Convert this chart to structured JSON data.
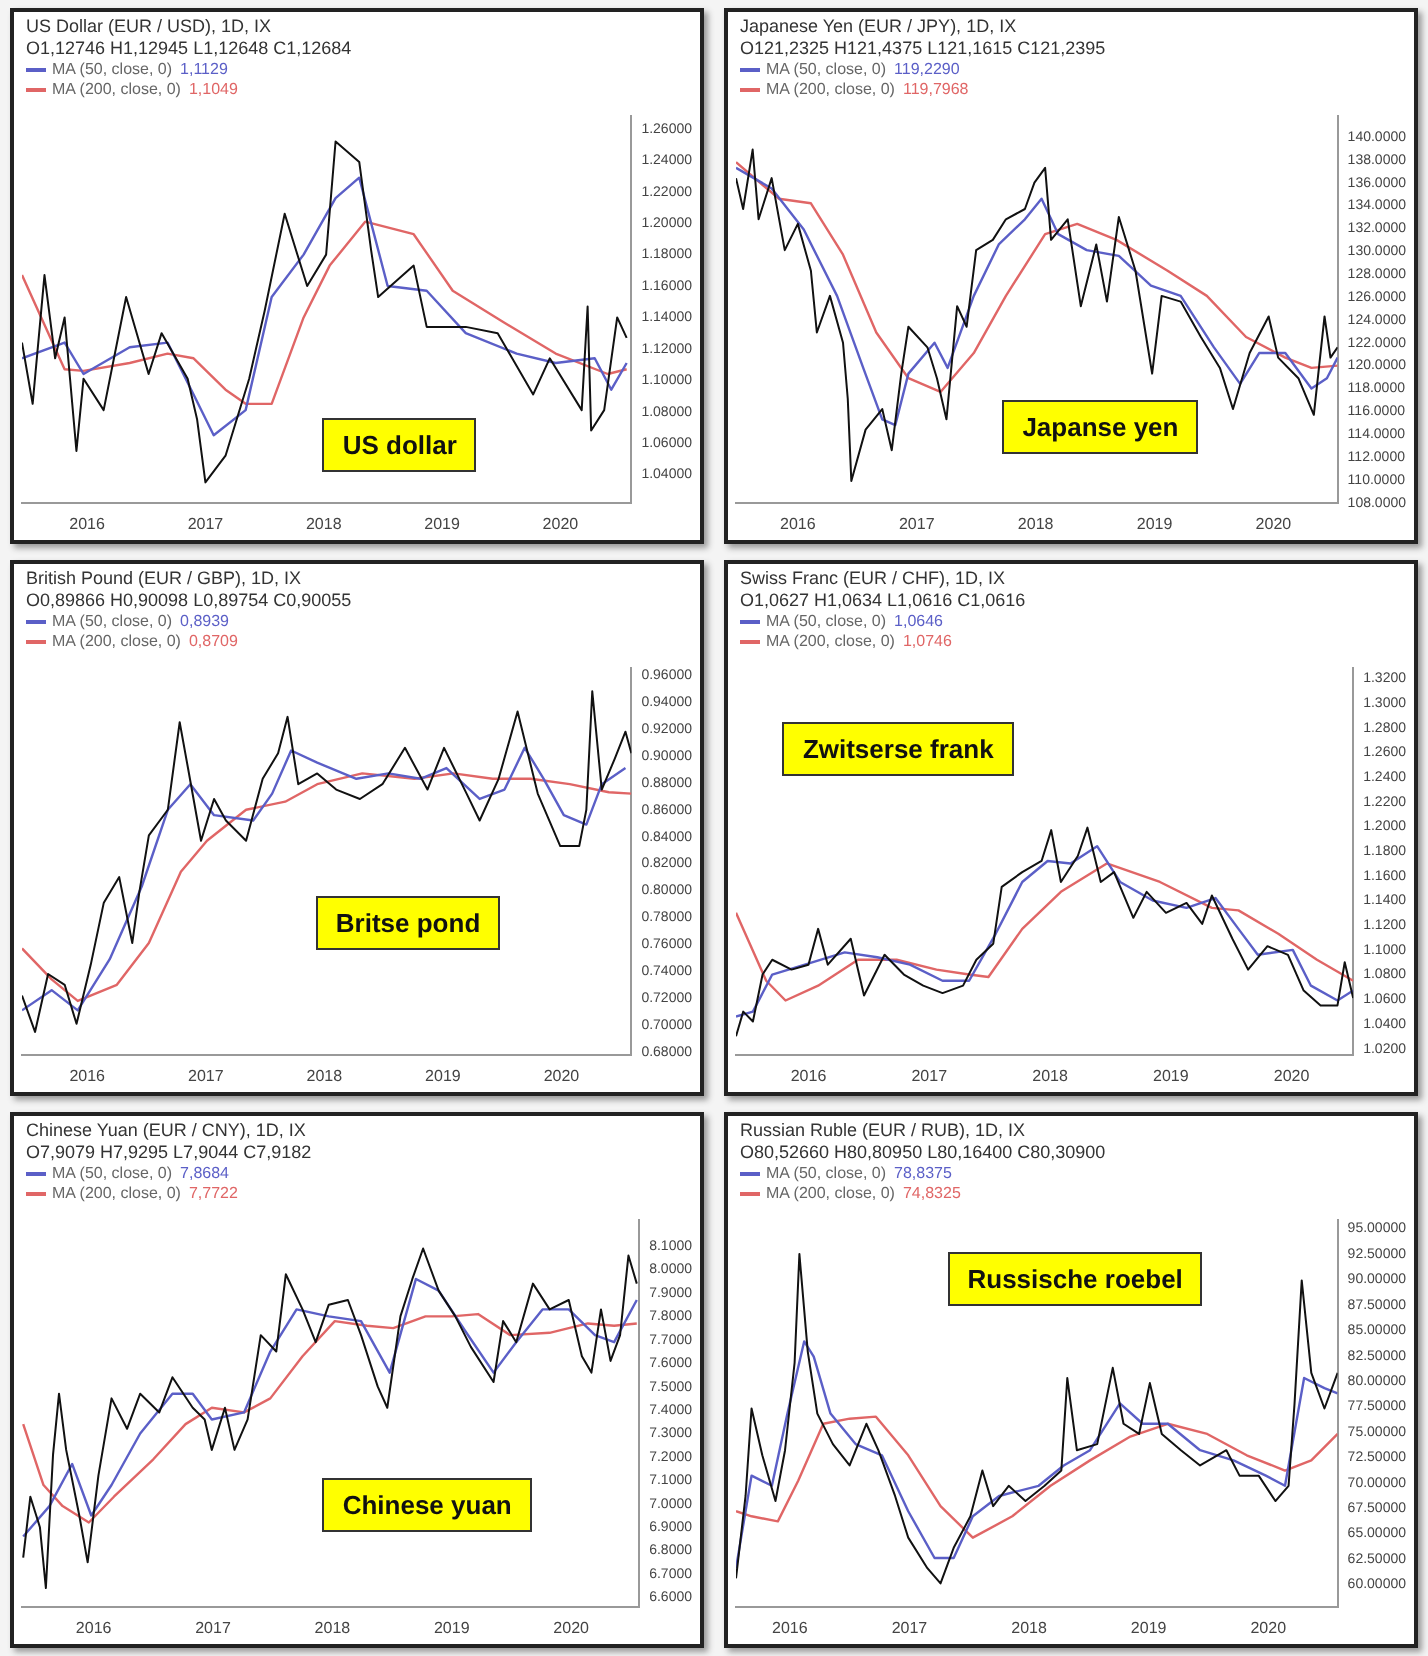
{
  "chart_data": [
    {
      "type": "line",
      "title": "US Dollar (EUR / USD), 1D, IX",
      "subtitle": "O1,12746 H1,12945 L1,12648 C1,12684",
      "legend": "top left",
      "annotations": [
        "US dollar",
        "1,1129",
        "1,1049"
      ],
      "xlim": [
        2015.45,
        2020.6
      ],
      "xticks": [
        2016,
        2017,
        2018,
        2019,
        2020
      ],
      "ylim": [
        1.022,
        1.268
      ],
      "yticks": [
        {
          "value": 1.04,
          "label": "1.04000"
        },
        {
          "value": 1.06,
          "label": "1.06000"
        },
        {
          "value": 1.08,
          "label": "1.08000"
        },
        {
          "value": 1.1,
          "label": "1.10000"
        },
        {
          "value": 1.12,
          "label": "1.12000"
        },
        {
          "value": 1.14,
          "label": "1.14000"
        },
        {
          "value": 1.16,
          "label": "1.16000"
        },
        {
          "value": 1.18,
          "label": "1.18000"
        },
        {
          "value": 1.2,
          "label": "1.20000"
        },
        {
          "value": 1.22,
          "label": "1.22000"
        },
        {
          "value": 1.24,
          "label": "1.24000"
        },
        {
          "value": 1.26,
          "label": "1.26000"
        }
      ],
      "series": [
        {
          "color": "#111111",
          "x": [
            2015.45,
            2015.54,
            2015.64,
            2015.73,
            2015.81,
            2015.91,
            2015.97,
            2016.14,
            2016.33,
            2016.52,
            2016.63,
            2016.85,
            2016.93,
            2017.0,
            2017.17,
            2017.37,
            2017.5,
            2017.67,
            2017.86,
            2018.02,
            2018.1,
            2018.3,
            2018.4,
            2018.46,
            2018.76,
            2018.87,
            2019.2,
            2019.47,
            2019.77,
            2019.91,
            2020.18,
            2020.23,
            2020.26,
            2020.37,
            2020.48,
            2020.56
          ],
          "values": [
            1.124,
            1.085,
            1.167,
            1.114,
            1.14,
            1.055,
            1.101,
            1.081,
            1.153,
            1.104,
            1.13,
            1.101,
            1.075,
            1.035,
            1.052,
            1.101,
            1.144,
            1.206,
            1.16,
            1.18,
            1.252,
            1.239,
            1.183,
            1.153,
            1.173,
            1.134,
            1.134,
            1.13,
            1.091,
            1.114,
            1.081,
            1.147,
            1.068,
            1.081,
            1.14,
            1.127
          ]
        },
        {
          "name": "MA (50, close, 0)",
          "color": "#5b5fc7",
          "x": [
            2015.45,
            2015.81,
            2015.97,
            2016.36,
            2016.68,
            2016.9,
            2017.07,
            2017.34,
            2017.56,
            2017.83,
            2018.1,
            2018.3,
            2018.54,
            2018.87,
            2019.2,
            2019.63,
            2019.96,
            2020.29,
            2020.43,
            2020.56
          ],
          "values": [
            1.114,
            1.124,
            1.104,
            1.121,
            1.124,
            1.091,
            1.065,
            1.081,
            1.153,
            1.18,
            1.216,
            1.229,
            1.16,
            1.157,
            1.13,
            1.117,
            1.111,
            1.114,
            1.094,
            1.111
          ]
        },
        {
          "name": "MA (200, close, 0)",
          "color": "#e06666",
          "x": [
            2015.45,
            2015.81,
            2015.97,
            2016.36,
            2016.68,
            2016.9,
            2017.17,
            2017.34,
            2017.56,
            2017.83,
            2018.05,
            2018.35,
            2018.76,
            2019.09,
            2019.52,
            2019.96,
            2020.4,
            2020.56
          ],
          "values": [
            1.167,
            1.107,
            1.106,
            1.111,
            1.117,
            1.114,
            1.094,
            1.085,
            1.085,
            1.14,
            1.173,
            1.201,
            1.193,
            1.157,
            1.137,
            1.117,
            1.104,
            1.107
          ]
        }
      ]
    },
    {
      "type": "line",
      "title": "Japanese Yen (EUR / JPY), 1D, IX",
      "subtitle": "O121,2325 H121,4375 L121,1615 C121,2395",
      "legend": "top left",
      "annotations": [
        "Japanse yen",
        "119,2290",
        "119,7968"
      ],
      "xlim": [
        2015.48,
        2020.54
      ],
      "xticks": [
        2016,
        2017,
        2018,
        2019,
        2020
      ],
      "ylim": [
        108,
        141.8
      ],
      "yticks": [
        {
          "value": 108,
          "label": "108.0000"
        },
        {
          "value": 110,
          "label": "110.0000"
        },
        {
          "value": 112,
          "label": "112.0000"
        },
        {
          "value": 114,
          "label": "114.0000"
        },
        {
          "value": 116,
          "label": "116.0000"
        },
        {
          "value": 118,
          "label": "118.0000"
        },
        {
          "value": 120,
          "label": "120.0000"
        },
        {
          "value": 122,
          "label": "122.0000"
        },
        {
          "value": 124,
          "label": "124.0000"
        },
        {
          "value": 126,
          "label": "126.0000"
        },
        {
          "value": 128,
          "label": "128.0000"
        },
        {
          "value": 130,
          "label": "130.0000"
        },
        {
          "value": 132,
          "label": "132.0000"
        },
        {
          "value": 134,
          "label": "134.0000"
        },
        {
          "value": 136,
          "label": "136.0000"
        },
        {
          "value": 138,
          "label": "138.0000"
        },
        {
          "value": 140,
          "label": "140.0000"
        }
      ],
      "series": [
        {
          "color": "#111111",
          "x": [
            2015.48,
            2015.54,
            2015.62,
            2015.67,
            2015.78,
            2015.89,
            2016.0,
            2016.11,
            2016.16,
            2016.27,
            2016.38,
            2016.42,
            2016.45,
            2016.57,
            2016.71,
            2016.79,
            2016.87,
            2016.93,
            2017.09,
            2017.17,
            2017.25,
            2017.34,
            2017.42,
            2017.5,
            2017.64,
            2017.75,
            2017.91,
            2017.99,
            2018.08,
            2018.13,
            2018.27,
            2018.38,
            2018.51,
            2018.6,
            2018.7,
            2018.84,
            2018.98,
            2019.06,
            2019.22,
            2019.39,
            2019.55,
            2019.66,
            2019.8,
            2019.96,
            2020.04,
            2020.21,
            2020.34,
            2020.43,
            2020.48,
            2020.54
          ],
          "values": [
            136.4,
            133.7,
            138.9,
            132.8,
            136.4,
            130.1,
            132.4,
            128.3,
            122.9,
            126.1,
            122.0,
            117.1,
            109.9,
            114.4,
            116.2,
            112.6,
            119.3,
            123.4,
            121.6,
            118.9,
            115.3,
            125.2,
            123.4,
            130.1,
            131.0,
            132.8,
            133.7,
            136.0,
            137.3,
            131.0,
            132.8,
            125.2,
            130.6,
            125.6,
            133.0,
            128.3,
            119.3,
            126.1,
            125.6,
            122.5,
            119.8,
            116.2,
            121.1,
            124.3,
            120.7,
            118.9,
            115.7,
            124.3,
            120.7,
            121.6
          ]
        },
        {
          "name": "MA (50, close, 0)",
          "color": "#5b5fc7",
          "x": [
            2015.48,
            2015.78,
            2016.05,
            2016.33,
            2016.55,
            2016.71,
            2016.82,
            2016.93,
            2017.15,
            2017.26,
            2017.48,
            2017.69,
            2017.91,
            2018.05,
            2018.19,
            2018.43,
            2018.7,
            2018.97,
            2019.22,
            2019.5,
            2019.72,
            2019.88,
            2020.1,
            2020.32,
            2020.45,
            2020.54
          ],
          "values": [
            137.3,
            135.5,
            131.9,
            126.1,
            119.8,
            115.3,
            114.8,
            119.3,
            122.0,
            119.8,
            126.1,
            130.6,
            132.8,
            134.6,
            131.5,
            130.1,
            129.6,
            127.0,
            126.1,
            121.6,
            118.4,
            121.1,
            121.1,
            118.0,
            118.9,
            120.7
          ]
        },
        {
          "name": "MA (200, close, 0)",
          "color": "#e06666",
          "x": [
            2015.48,
            2015.84,
            2016.11,
            2016.38,
            2016.66,
            2016.93,
            2017.2,
            2017.48,
            2017.75,
            2018.08,
            2018.35,
            2018.68,
            2019.11,
            2019.44,
            2019.77,
            2020.1,
            2020.32,
            2020.54
          ],
          "values": [
            137.8,
            134.6,
            134.2,
            129.7,
            122.9,
            118.9,
            117.7,
            121.1,
            126.1,
            131.5,
            132.4,
            131.0,
            128.3,
            126.1,
            122.5,
            120.7,
            119.8,
            120.0
          ]
        }
      ]
    },
    {
      "type": "line",
      "title": "British Pound (EUR / GBP), 1D, IX",
      "subtitle": "O0,89866 H0,90098 L0,89754 C0,90055",
      "legend": "top left",
      "annotations": [
        "Britse pond",
        "0,8939",
        "0,8709"
      ],
      "xlim": [
        2015.45,
        2020.59
      ],
      "xticks": [
        2016,
        2017,
        2018,
        2019,
        2020
      ],
      "ylim": [
        0.678,
        0.965
      ],
      "yticks": [
        {
          "value": 0.68,
          "label": "0.68000"
        },
        {
          "value": 0.7,
          "label": "0.70000"
        },
        {
          "value": 0.72,
          "label": "0.72000"
        },
        {
          "value": 0.74,
          "label": "0.74000"
        },
        {
          "value": 0.76,
          "label": "0.76000"
        },
        {
          "value": 0.78,
          "label": "0.78000"
        },
        {
          "value": 0.8,
          "label": "0.80000"
        },
        {
          "value": 0.82,
          "label": "0.82000"
        },
        {
          "value": 0.84,
          "label": "0.84000"
        },
        {
          "value": 0.86,
          "label": "0.86000"
        },
        {
          "value": 0.88,
          "label": "0.88000"
        },
        {
          "value": 0.9,
          "label": "0.90000"
        },
        {
          "value": 0.92,
          "label": "0.92000"
        },
        {
          "value": 0.94,
          "label": "0.94000"
        },
        {
          "value": 0.96,
          "label": "0.96000"
        }
      ],
      "series": [
        {
          "color": "#111111",
          "x": [
            2015.45,
            2015.56,
            2015.67,
            2015.81,
            2015.91,
            2016.03,
            2016.14,
            2016.27,
            2016.38,
            2016.44,
            2016.52,
            2016.68,
            2016.78,
            2016.85,
            2016.96,
            2017.07,
            2017.17,
            2017.34,
            2017.48,
            2017.61,
            2017.69,
            2017.78,
            2017.94,
            2018.1,
            2018.3,
            2018.49,
            2018.68,
            2018.87,
            2019.01,
            2019.2,
            2019.31,
            2019.47,
            2019.63,
            2019.8,
            2019.99,
            2020.15,
            2020.21,
            2020.26,
            2020.34,
            2020.45,
            2020.54,
            2020.59
          ],
          "values": [
            0.722,
            0.695,
            0.738,
            0.73,
            0.701,
            0.745,
            0.791,
            0.81,
            0.761,
            0.799,
            0.841,
            0.86,
            0.925,
            0.891,
            0.837,
            0.868,
            0.852,
            0.837,
            0.883,
            0.902,
            0.929,
            0.879,
            0.887,
            0.875,
            0.868,
            0.879,
            0.906,
            0.875,
            0.906,
            0.872,
            0.852,
            0.883,
            0.933,
            0.872,
            0.833,
            0.833,
            0.86,
            0.948,
            0.875,
            0.898,
            0.918,
            0.902
          ]
        },
        {
          "name": "MA (50, close, 0)",
          "color": "#5b5fc7",
          "x": [
            2015.45,
            2015.7,
            2015.92,
            2016.19,
            2016.46,
            2016.68,
            2016.87,
            2017.07,
            2017.4,
            2017.56,
            2017.72,
            2017.94,
            2018.27,
            2018.54,
            2018.81,
            2019.03,
            2019.31,
            2019.52,
            2019.69,
            2019.85,
            2020.02,
            2020.21,
            2020.34,
            2020.54
          ],
          "values": [
            0.711,
            0.726,
            0.711,
            0.749,
            0.803,
            0.86,
            0.879,
            0.856,
            0.852,
            0.872,
            0.904,
            0.895,
            0.883,
            0.887,
            0.883,
            0.891,
            0.868,
            0.875,
            0.906,
            0.883,
            0.856,
            0.849,
            0.879,
            0.891
          ]
        },
        {
          "name": "MA (200, close, 0)",
          "color": "#e06666",
          "x": [
            2015.45,
            2015.7,
            2015.92,
            2016.25,
            2016.52,
            2016.79,
            2017.01,
            2017.34,
            2017.67,
            2017.94,
            2018.32,
            2018.76,
            2019.09,
            2019.42,
            2019.74,
            2020.07,
            2020.4,
            2020.59
          ],
          "values": [
            0.757,
            0.734,
            0.718,
            0.73,
            0.761,
            0.814,
            0.837,
            0.86,
            0.866,
            0.879,
            0.887,
            0.883,
            0.887,
            0.883,
            0.883,
            0.879,
            0.873,
            0.872
          ]
        }
      ]
    },
    {
      "type": "line",
      "title": "Swiss Franc (EUR / CHF), 1D, IX",
      "subtitle": "O1,0627 H1,0634 L1,0616 C1,0616",
      "legend": "top left",
      "annotations": [
        "Zwitserse frank",
        "1,0646",
        "1,0746"
      ],
      "xlim": [
        2015.4,
        2020.51
      ],
      "xticks": [
        2016,
        2017,
        2018,
        2019,
        2020
      ],
      "ylim": [
        1.015,
        1.328
      ],
      "yticks": [
        {
          "value": 1.02,
          "label": "1.0200"
        },
        {
          "value": 1.04,
          "label": "1.0400"
        },
        {
          "value": 1.06,
          "label": "1.0600"
        },
        {
          "value": 1.08,
          "label": "1.0800"
        },
        {
          "value": 1.1,
          "label": "1.1000"
        },
        {
          "value": 1.12,
          "label": "1.1200"
        },
        {
          "value": 1.14,
          "label": "1.1400"
        },
        {
          "value": 1.16,
          "label": "1.1600"
        },
        {
          "value": 1.18,
          "label": "1.1800"
        },
        {
          "value": 1.2,
          "label": "1.2000"
        },
        {
          "value": 1.22,
          "label": "1.2200"
        },
        {
          "value": 1.24,
          "label": "1.2400"
        },
        {
          "value": 1.26,
          "label": "1.2600"
        },
        {
          "value": 1.28,
          "label": "1.2800"
        },
        {
          "value": 1.3,
          "label": "1.3000"
        },
        {
          "value": 1.32,
          "label": "1.3200"
        }
      ],
      "series": [
        {
          "color": "#111111",
          "x": [
            2015.4,
            2015.46,
            2015.54,
            2015.62,
            2015.7,
            2015.86,
            2016.0,
            2016.08,
            2016.16,
            2016.35,
            2016.46,
            2016.63,
            2016.79,
            2016.95,
            2017.11,
            2017.28,
            2017.39,
            2017.53,
            2017.6,
            2017.77,
            2017.93,
            2018.01,
            2018.09,
            2018.23,
            2018.31,
            2018.42,
            2018.53,
            2018.69,
            2018.8,
            2018.96,
            2019.13,
            2019.26,
            2019.34,
            2019.51,
            2019.64,
            2019.8,
            2019.97,
            2020.1,
            2020.24,
            2020.38,
            2020.44,
            2020.51
          ],
          "values": [
            1.03,
            1.05,
            1.042,
            1.08,
            1.092,
            1.084,
            1.088,
            1.117,
            1.088,
            1.109,
            1.063,
            1.096,
            1.08,
            1.071,
            1.065,
            1.071,
            1.092,
            1.105,
            1.151,
            1.163,
            1.172,
            1.197,
            1.155,
            1.176,
            1.199,
            1.155,
            1.163,
            1.126,
            1.147,
            1.13,
            1.138,
            1.121,
            1.144,
            1.109,
            1.084,
            1.103,
            1.096,
            1.067,
            1.055,
            1.055,
            1.09,
            1.061
          ]
        },
        {
          "name": "MA (50, close, 0)",
          "color": "#5b5fc7",
          "x": [
            2015.4,
            2015.54,
            2015.7,
            2015.97,
            2016.3,
            2016.57,
            2016.84,
            2017.11,
            2017.33,
            2017.55,
            2017.77,
            2017.98,
            2018.17,
            2018.39,
            2018.58,
            2018.85,
            2019.13,
            2019.37,
            2019.56,
            2019.72,
            2020.01,
            2020.16,
            2020.38,
            2020.51
          ],
          "values": [
            1.046,
            1.05,
            1.08,
            1.088,
            1.098,
            1.094,
            1.088,
            1.075,
            1.075,
            1.113,
            1.155,
            1.172,
            1.17,
            1.184,
            1.155,
            1.14,
            1.134,
            1.142,
            1.117,
            1.096,
            1.1,
            1.071,
            1.059,
            1.067
          ]
        },
        {
          "name": "MA (200, close, 0)",
          "color": "#e06666",
          "x": [
            2015.4,
            2015.65,
            2015.81,
            2016.08,
            2016.41,
            2016.73,
            2017.06,
            2017.33,
            2017.49,
            2017.77,
            2018.09,
            2018.47,
            2018.91,
            2019.34,
            2019.56,
            2019.89,
            2020.21,
            2020.51
          ],
          "values": [
            1.13,
            1.075,
            1.059,
            1.071,
            1.092,
            1.092,
            1.084,
            1.08,
            1.078,
            1.117,
            1.147,
            1.17,
            1.155,
            1.134,
            1.132,
            1.113,
            1.092,
            1.075
          ]
        }
      ]
    },
    {
      "type": "line",
      "title": "Chinese Yuan (EUR / CNY), 1D, IX",
      "subtitle": "O7,9079 H7,9295 L7,9044 C7,9182",
      "legend": "top left",
      "annotations": [
        "Chinese yuan",
        "7,8684",
        "7,7722"
      ],
      "xlim": [
        2015.4,
        2020.57
      ],
      "xticks": [
        2016,
        2017,
        2018,
        2019,
        2020
      ],
      "ylim": [
        6.56,
        8.21
      ],
      "yticks": [
        {
          "value": 6.6,
          "label": "6.6000"
        },
        {
          "value": 6.7,
          "label": "6.7000"
        },
        {
          "value": 6.8,
          "label": "6.8000"
        },
        {
          "value": 6.9,
          "label": "6.9000"
        },
        {
          "value": 7.0,
          "label": "7.0000"
        },
        {
          "value": 7.1,
          "label": "7.1000"
        },
        {
          "value": 7.2,
          "label": "7.2000"
        },
        {
          "value": 7.3,
          "label": "7.3000"
        },
        {
          "value": 7.4,
          "label": "7.4000"
        },
        {
          "value": 7.5,
          "label": "7.5000"
        },
        {
          "value": 7.6,
          "label": "7.6000"
        },
        {
          "value": 7.7,
          "label": "7.7000"
        },
        {
          "value": 7.8,
          "label": "7.8000"
        },
        {
          "value": 7.9,
          "label": "7.9000"
        },
        {
          "value": 8.0,
          "label": "8.0000"
        },
        {
          "value": 8.1,
          "label": "8.1000"
        }
      ],
      "series": [
        {
          "color": "#111111",
          "x": [
            2015.41,
            2015.47,
            2015.55,
            2015.6,
            2015.66,
            2015.71,
            2015.77,
            2015.88,
            2015.95,
            2016.04,
            2016.15,
            2016.28,
            2016.39,
            2016.55,
            2016.66,
            2016.83,
            2016.93,
            2016.99,
            2017.1,
            2017.18,
            2017.29,
            2017.4,
            2017.53,
            2017.61,
            2017.75,
            2017.86,
            2017.97,
            2018.13,
            2018.24,
            2018.38,
            2018.46,
            2018.57,
            2018.67,
            2018.76,
            2018.89,
            2019.03,
            2019.16,
            2019.35,
            2019.43,
            2019.54,
            2019.68,
            2019.82,
            2019.98,
            2020.09,
            2020.17,
            2020.25,
            2020.33,
            2020.41,
            2020.48,
            2020.55
          ],
          "values": [
            6.77,
            7.03,
            6.9,
            6.64,
            7.21,
            7.47,
            7.23,
            6.95,
            6.75,
            7.12,
            7.45,
            7.32,
            7.47,
            7.39,
            7.54,
            7.41,
            7.36,
            7.23,
            7.41,
            7.23,
            7.36,
            7.72,
            7.65,
            7.98,
            7.83,
            7.69,
            7.85,
            7.87,
            7.72,
            7.5,
            7.41,
            7.8,
            7.96,
            8.09,
            7.91,
            7.8,
            7.67,
            7.52,
            7.78,
            7.69,
            7.94,
            7.83,
            7.87,
            7.63,
            7.56,
            7.83,
            7.61,
            7.72,
            8.06,
            7.94
          ]
        },
        {
          "name": "MA (50, close, 0)",
          "color": "#5b5fc7",
          "x": [
            2015.41,
            2015.63,
            2015.82,
            2015.98,
            2016.15,
            2016.39,
            2016.66,
            2016.83,
            2016.99,
            2017.26,
            2017.48,
            2017.7,
            2017.97,
            2018.24,
            2018.48,
            2018.7,
            2018.89,
            2019.11,
            2019.35,
            2019.54,
            2019.76,
            2019.98,
            2020.2,
            2020.36,
            2020.55
          ],
          "values": [
            6.86,
            6.99,
            7.17,
            6.95,
            7.08,
            7.3,
            7.47,
            7.47,
            7.36,
            7.39,
            7.65,
            7.83,
            7.8,
            7.78,
            7.56,
            7.96,
            7.91,
            7.74,
            7.56,
            7.69,
            7.83,
            7.83,
            7.72,
            7.69,
            7.87
          ]
        },
        {
          "name": "MA (200, close, 0)",
          "color": "#e06666",
          "x": [
            2015.41,
            2015.58,
            2015.74,
            2015.96,
            2016.17,
            2016.5,
            2016.77,
            2016.99,
            2017.26,
            2017.48,
            2017.75,
            2018.02,
            2018.29,
            2018.51,
            2018.78,
            2019.0,
            2019.22,
            2019.49,
            2019.82,
            2020.14,
            2020.36,
            2020.55
          ],
          "values": [
            7.34,
            7.08,
            6.99,
            6.92,
            7.03,
            7.19,
            7.34,
            7.41,
            7.39,
            7.45,
            7.63,
            7.78,
            7.76,
            7.75,
            7.8,
            7.8,
            7.81,
            7.72,
            7.73,
            7.77,
            7.76,
            7.77
          ]
        }
      ]
    },
    {
      "type": "line",
      "title": "Russian Ruble (EUR / RUB), 1D, IX",
      "subtitle": "O80,52660 H80,80950 L80,16400 C80,30900",
      "legend": "top left",
      "annotations": [
        "Russische roebel",
        "78,8375",
        "74,8325"
      ],
      "xlim": [
        2015.55,
        2020.58
      ],
      "xticks": [
        2016,
        2017,
        2018,
        2019,
        2020
      ],
      "ylim": [
        57.8,
        95.8
      ],
      "yticks": [
        {
          "value": 60,
          "label": "60.00000"
        },
        {
          "value": 62.5,
          "label": "62.50000"
        },
        {
          "value": 65,
          "label": "65.00000"
        },
        {
          "value": 67.5,
          "label": "67.50000"
        },
        {
          "value": 70,
          "label": "70.00000"
        },
        {
          "value": 72.5,
          "label": "72.50000"
        },
        {
          "value": 75,
          "label": "75.00000"
        },
        {
          "value": 77.5,
          "label": "77.50000"
        },
        {
          "value": 80,
          "label": "80.00000"
        },
        {
          "value": 82.5,
          "label": "82.50000"
        },
        {
          "value": 85,
          "label": "85.00000"
        },
        {
          "value": 87.5,
          "label": "87.50000"
        },
        {
          "value": 90,
          "label": "90.00000"
        },
        {
          "value": 92.5,
          "label": "92.50000"
        },
        {
          "value": 95,
          "label": "95.00000"
        }
      ],
      "series": [
        {
          "color": "#111111",
          "x": [
            2015.55,
            2015.63,
            2015.68,
            2015.77,
            2015.88,
            2015.96,
            2016.04,
            2016.08,
            2016.15,
            2016.23,
            2016.36,
            2016.5,
            2016.64,
            2016.74,
            2016.88,
            2016.99,
            2017.15,
            2017.26,
            2017.37,
            2017.51,
            2017.61,
            2017.7,
            2017.83,
            2017.97,
            2018.13,
            2018.27,
            2018.32,
            2018.4,
            2018.57,
            2018.7,
            2018.79,
            2018.92,
            2019.01,
            2019.11,
            2019.27,
            2019.43,
            2019.65,
            2019.76,
            2019.92,
            2020.06,
            2020.17,
            2020.22,
            2020.28,
            2020.36,
            2020.47,
            2020.58
          ],
          "values": [
            60.6,
            68.7,
            77.3,
            72.7,
            68.2,
            73.2,
            81.8,
            92.5,
            82.9,
            76.8,
            73.8,
            71.7,
            75.8,
            73.2,
            68.7,
            64.6,
            61.6,
            60.1,
            63.6,
            66.7,
            71.2,
            67.7,
            69.7,
            68.2,
            69.7,
            71.2,
            80.3,
            73.2,
            73.8,
            81.3,
            75.8,
            74.8,
            79.8,
            74.8,
            73.2,
            71.7,
            73.2,
            70.7,
            70.7,
            68.2,
            69.7,
            77.8,
            89.9,
            80.8,
            77.3,
            80.8
          ]
        },
        {
          "name": "MA (50, close, 0)",
          "color": "#5b5fc7",
          "x": [
            2015.55,
            2015.68,
            2015.85,
            2015.98,
            2016.12,
            2016.2,
            2016.34,
            2016.55,
            2016.77,
            2016.99,
            2017.21,
            2017.37,
            2017.53,
            2017.75,
            2018.08,
            2018.29,
            2018.51,
            2018.76,
            2018.95,
            2019.16,
            2019.43,
            2019.71,
            2019.98,
            2020.14,
            2020.3,
            2020.47,
            2020.58
          ],
          "values": [
            61.6,
            70.7,
            69.7,
            76.8,
            83.9,
            82.4,
            76.8,
            73.8,
            72.7,
            67.2,
            62.6,
            62.6,
            66.7,
            68.7,
            69.7,
            71.7,
            73.2,
            77.8,
            75.8,
            75.8,
            73.2,
            72.2,
            70.7,
            69.7,
            80.3,
            79.3,
            78.8
          ]
        },
        {
          "name": "MA (200, close, 0)",
          "color": "#e06666",
          "x": [
            2015.55,
            2015.68,
            2015.9,
            2016.07,
            2016.28,
            2016.5,
            2016.72,
            2016.99,
            2017.26,
            2017.53,
            2017.86,
            2018.18,
            2018.51,
            2018.84,
            2019.16,
            2019.49,
            2019.82,
            2020.14,
            2020.36,
            2020.58
          ],
          "values": [
            67.2,
            66.7,
            66.2,
            70.2,
            75.8,
            76.3,
            76.5,
            72.7,
            67.7,
            64.6,
            66.7,
            69.7,
            72.2,
            74.5,
            75.8,
            74.8,
            72.7,
            71.2,
            72.2,
            74.8
          ]
        }
      ]
    }
  ]
}
